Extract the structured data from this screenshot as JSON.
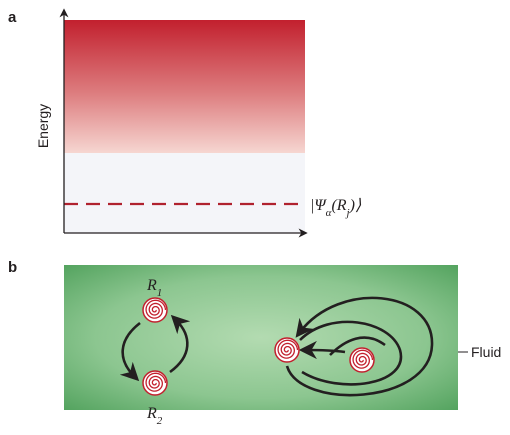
{
  "panel_a": {
    "label": "a",
    "y_axis_label": "Energy",
    "state_label": {
      "parts": [
        "|Ψ",
        "α",
        "(R",
        "j",
        ")⟩"
      ]
    }
  },
  "panel_b": {
    "label": "b",
    "vortex_labels": [
      {
        "letter": "R",
        "sub": "1"
      },
      {
        "letter": "R",
        "sub": "2"
      }
    ],
    "fluid_label": "Fluid"
  }
}
